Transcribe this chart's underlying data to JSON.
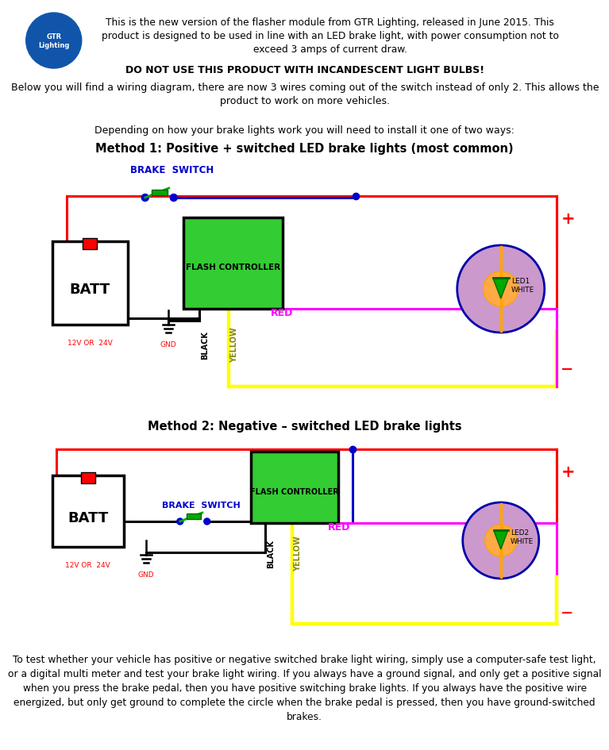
{
  "bg_color": "#ffffff",
  "header_text": "This is the new version of the flasher module from GTR Lighting, released in June 2015. This\nproduct is designed to be used in line with an LED brake light, with power consumption not to\nexceed 3 amps of current draw.",
  "warning_text": "DO NOT USE THIS PRODUCT WITH INCANDESCENT LIGHT BULBS!",
  "below_text": "Below you will find a wiring diagram, there are now 3 wires coming out of the switch instead of only 2. This allows the\nproduct to work on more vehicles.",
  "depending_text": "Depending on how your brake lights work you will need to install it one of two ways:",
  "method1_title": "Method 1: Positive + switched LED brake lights (most common)",
  "method2_title": "Method 2: Negative – switched LED brake lights",
  "bottom_text": "To test whether your vehicle has positive or negative switched brake light wiring, simply use a computer-safe test light,\nor a digital multi meter and test your brake light wiring. If you always have a ground signal, and only get a positive signal\nwhen you press the brake pedal, then you have positive switching brake lights. If you always have the positive wire\nenergized, but only get ground to complete the circle when the brake pedal is pressed, then you have ground-switched\nbrakes.",
  "red": "#FF0000",
  "magenta": "#FF00FF",
  "yellow": "#FFFF00",
  "black": "#000000",
  "blue": "#0000CC",
  "green": "#00AA00",
  "dark_green": "#006600",
  "purple_fill": "#CC99CC",
  "led_orange": "#FFAA44",
  "batt_red": "#FF0000",
  "logo_blue": "#1155AA",
  "fc_green": "#33CC33"
}
